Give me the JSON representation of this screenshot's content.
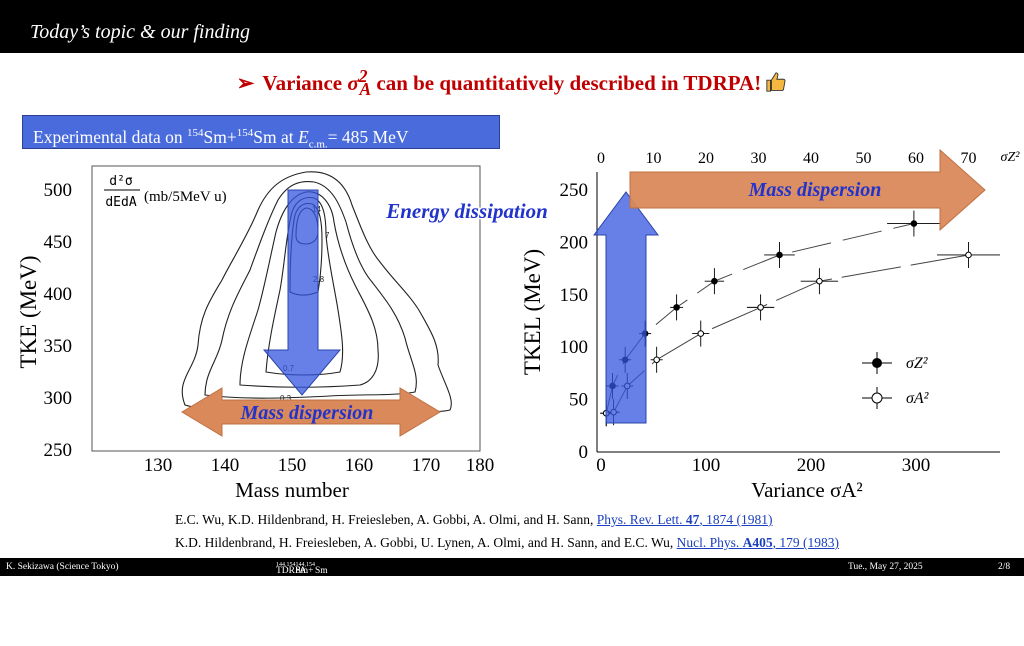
{
  "header": {
    "title": "Today’s topic & our finding"
  },
  "headline": {
    "arrow": "➢",
    "pre": "Variance",
    "symbol": "σ",
    "symbol_sup": "2",
    "symbol_sub": "A",
    "post": "can be quantitatively described in TDRPA!"
  },
  "exp_box": {
    "text1": "Experimental data on ",
    "m1": "154",
    "e1": "Sm+",
    "m2": "154",
    "e2": "Sm at ",
    "E": "E",
    "sub": "c.m.",
    "rest": "= 485 MeV"
  },
  "left_plot": {
    "ylabel": "TKE (MeV)",
    "xlabel": "Mass number",
    "unit_num": "d²σ",
    "unit_den": "dEdA",
    "unit_text": "(mb/5MeV u)",
    "xticks": [
      "130",
      "140",
      "150",
      "160",
      "170",
      "180"
    ],
    "yticks": [
      "500",
      "450",
      "400",
      "350",
      "300",
      "250"
    ],
    "contour_labels": [
      "14",
      "7",
      "2.8",
      "0.7",
      "0.3"
    ],
    "arrow_vertical_label": "Energy dissipation",
    "arrow_horizontal_label": "Mass dispersion"
  },
  "chart_data": {
    "type": "scatter",
    "xlabel": "Variance σA²",
    "ylabel": "TKEL (MeV)",
    "xlim": [
      0,
      380
    ],
    "ylim": [
      0,
      260
    ],
    "top_axis": {
      "label": "σZ²",
      "ticks": [
        "0",
        "10",
        "20",
        "30",
        "40",
        "50",
        "60",
        "70"
      ],
      "range": [
        0,
        76
      ]
    },
    "xticks": [
      "0",
      "100",
      "200",
      "300"
    ],
    "yticks": [
      "0",
      "50",
      "100",
      "150",
      "200",
      "250"
    ],
    "series": [
      {
        "name": "σZ²",
        "marker": "filled-circle",
        "points": [
          [
            5,
            37
          ],
          [
            11,
            63
          ],
          [
            23,
            88
          ],
          [
            42,
            113
          ],
          [
            72,
            138
          ],
          [
            108,
            163
          ],
          [
            170,
            188
          ],
          [
            298,
            218
          ]
        ]
      },
      {
        "name": "σA²",
        "marker": "open-circle",
        "points": [
          [
            5,
            37
          ],
          [
            12,
            38
          ],
          [
            25,
            63
          ],
          [
            53,
            88
          ],
          [
            95,
            113
          ],
          [
            152,
            138
          ],
          [
            208,
            163
          ],
          [
            350,
            188
          ]
        ]
      }
    ],
    "legend": "right",
    "arrow_label": "Mass dispersion"
  },
  "references": [
    {
      "authors": "E.C. Wu, K.D. Hildenbrand, H. Freiesleben, A. Gobbi, A. Olmi, and H. Sann, ",
      "journal": "Phys. Rev. Lett. ",
      "volume": "47",
      "pages": ", 1874 (1981)"
    },
    {
      "authors": "K.D. Hildenbrand, H. Freiesleben, A. Gobbi, U. Lynen, A. Olmi, and H. Sann, and E.C. Wu, ",
      "journal": "Nucl. Phys. ",
      "volume": "A405",
      "pages": ", 179 (1983)"
    }
  ],
  "footer": {
    "left": "K. Sekizawa (Science Tokyo)",
    "center_a": "TDRPA Calculations for Mass and Charge Fluctuations and Correlations in ",
    "center_m1": "144,154",
    "center_b": "Sm+",
    "center_m2": "144,154",
    "center_c": "Sm Reactions",
    "date": "Tue., May 27, 2025",
    "page": "2/8"
  }
}
